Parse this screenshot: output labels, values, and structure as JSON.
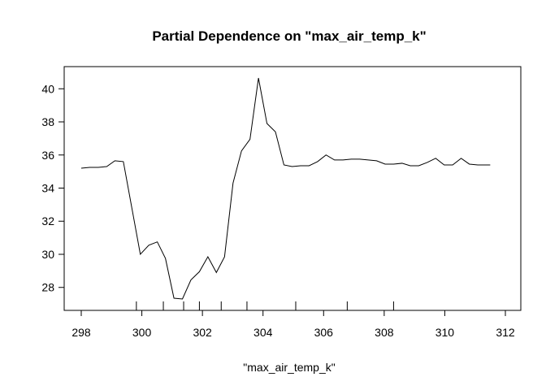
{
  "chart_data": {
    "type": "line",
    "title": "Partial Dependence on \"max_air_temp_k\"",
    "xlabel": "\"max_air_temp_k\"",
    "ylabel": "",
    "xlim": [
      298,
      312
    ],
    "ylim": [
      27.3,
      40.7
    ],
    "xticks": [
      298,
      300,
      302,
      304,
      306,
      308,
      310,
      312
    ],
    "yticks": [
      28,
      30,
      32,
      34,
      36,
      38,
      40
    ],
    "grid": false,
    "series": [
      {
        "color": "#000000",
        "x": [
          298.0,
          298.28,
          298.56,
          298.84,
          299.11,
          299.39,
          299.67,
          299.95,
          300.23,
          300.51,
          300.78,
          301.06,
          301.34,
          301.62,
          301.9,
          302.18,
          302.46,
          302.73,
          303.01,
          303.29,
          303.57,
          303.85,
          304.13,
          304.41,
          304.69,
          304.96,
          305.24,
          305.52,
          305.8,
          306.08,
          306.36,
          306.64,
          306.91,
          307.19,
          307.47,
          307.75,
          308.03,
          308.31,
          308.59,
          308.86,
          309.14,
          309.42,
          309.7,
          309.98,
          310.26,
          310.54,
          310.81,
          311.09,
          311.37,
          311.5
        ],
        "y": [
          35.2,
          35.25,
          35.25,
          35.3,
          35.65,
          35.6,
          32.8,
          30.0,
          30.55,
          30.75,
          29.75,
          27.35,
          27.3,
          28.45,
          28.95,
          29.85,
          28.9,
          29.85,
          34.3,
          36.25,
          36.95,
          40.65,
          37.9,
          37.4,
          35.4,
          35.3,
          35.35,
          35.35,
          35.6,
          36.0,
          35.7,
          35.7,
          35.75,
          35.75,
          35.7,
          35.65,
          35.45,
          35.45,
          35.5,
          35.35,
          35.35,
          35.55,
          35.8,
          35.4,
          35.4,
          35.8,
          35.45,
          35.4,
          35.4,
          35.4
        ]
      }
    ],
    "rug": [
      299.82,
      300.71,
      301.38,
      301.9,
      302.62,
      303.47,
      305.08,
      306.78,
      308.31
    ]
  }
}
